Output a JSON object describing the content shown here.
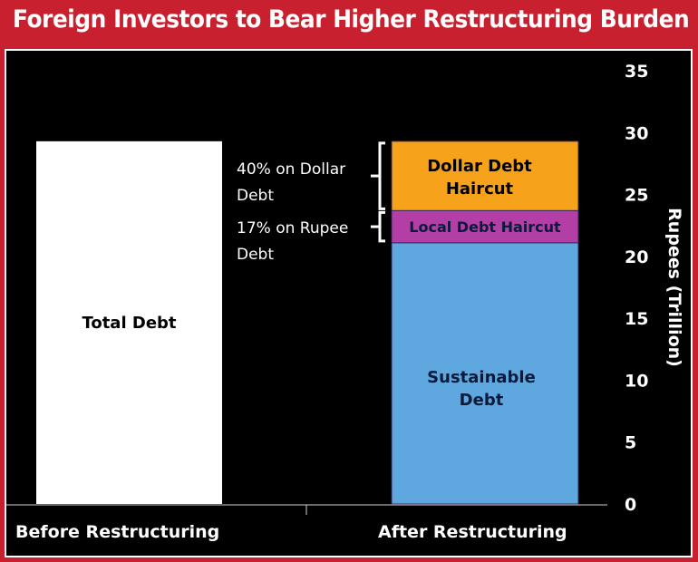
{
  "title": "Foreign Investors to Bear Higher Restructuring Burden",
  "colors": {
    "frame": "#c8202f",
    "background": "#000000",
    "total": "#ffffff",
    "sustainable": "#5ea7df",
    "local_haircut": "#b23ea6",
    "dollar_haircut": "#f7a21b",
    "text": "#ffffff",
    "dark_text": "#0a1a3a"
  },
  "chart_data": {
    "type": "bar",
    "stacked": true,
    "categories": [
      "Before Restructuring",
      "After Restructuring"
    ],
    "series": [
      {
        "name": "Total Debt",
        "values": [
          29.3,
          0
        ]
      },
      {
        "name": "Sustainable Debt",
        "values": [
          0,
          21.1
        ]
      },
      {
        "name": "Local Debt Haircut",
        "values": [
          0,
          2.6
        ]
      },
      {
        "name": "Dollar Debt Haircut",
        "values": [
          0,
          5.6
        ]
      }
    ],
    "bar_labels": {
      "total": "Total Debt",
      "sustainable": [
        "Sustainable",
        "Debt"
      ],
      "local": "Local Debt Haircut",
      "dollar": [
        "Dollar Debt",
        "Haircut"
      ]
    },
    "annotations": {
      "dollar": [
        "40% on Dollar",
        "Debt"
      ],
      "rupee": [
        "17% on Rupee",
        "Debt"
      ]
    },
    "yticks": [
      0,
      5,
      10,
      15,
      20,
      25,
      30,
      35
    ],
    "ylim": [
      0,
      35
    ],
    "ylabel": "Rupees (Trillion)",
    "xlabel": "",
    "grid": false,
    "legend": "none"
  }
}
